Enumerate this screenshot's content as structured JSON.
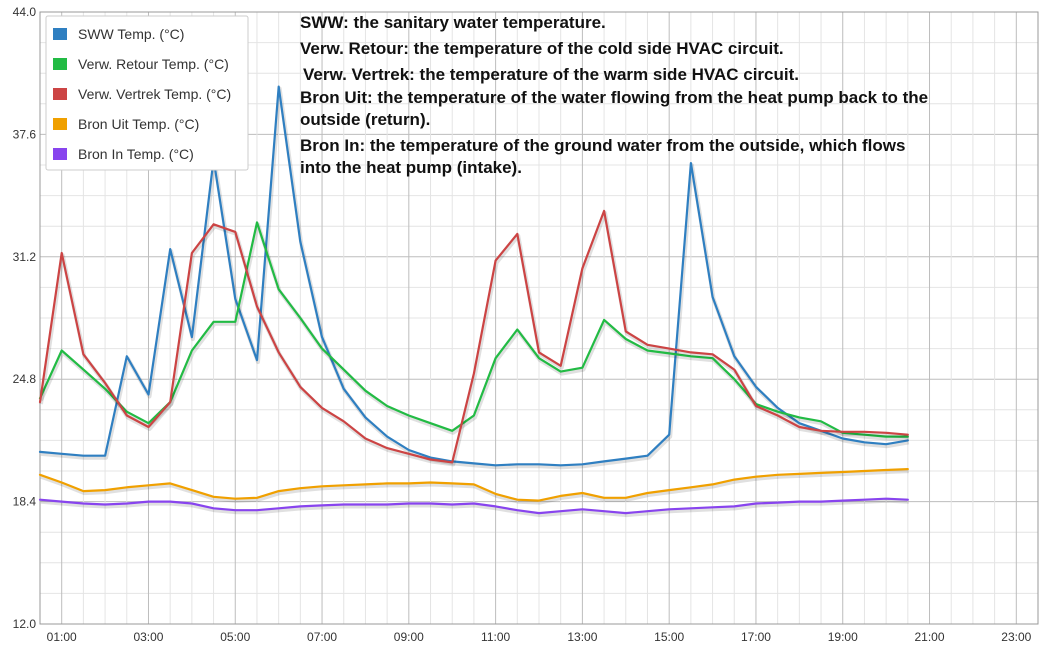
{
  "chart_data": {
    "type": "line",
    "title": "",
    "xlabel": "",
    "ylabel": "",
    "ylim": [
      12.0,
      44.0
    ],
    "xlim": [
      0.5,
      23.5
    ],
    "y_ticks": [
      "12.0",
      "18.4",
      "24.8",
      "31.2",
      "37.6",
      "44.0"
    ],
    "x_ticks": [
      "01:00",
      "03:00",
      "05:00",
      "07:00",
      "09:00",
      "11:00",
      "13:00",
      "15:00",
      "17:00",
      "19:00",
      "21:00",
      "23:00"
    ],
    "grid": true,
    "legend_position": "top-left",
    "x": [
      0.5,
      1.0,
      1.5,
      2.0,
      2.5,
      3.0,
      3.5,
      4.0,
      4.5,
      5.0,
      5.5,
      6.0,
      6.5,
      7.0,
      7.5,
      8.0,
      8.5,
      9.0,
      9.5,
      10.0,
      10.5,
      11.0,
      11.5,
      12.0,
      12.5,
      13.0,
      13.5,
      14.0,
      14.5,
      15.0,
      15.5,
      16.0,
      16.5,
      17.0,
      17.5,
      18.0,
      18.5,
      19.0,
      19.5,
      20.0,
      20.5
    ],
    "series": [
      {
        "name": "SWW Temp. (°C)",
        "color": "#2f7fc1",
        "values": [
          21.0,
          20.9,
          20.8,
          20.8,
          26.0,
          24.0,
          31.6,
          27.0,
          36.3,
          29.0,
          25.8,
          40.1,
          32.0,
          27.0,
          24.3,
          22.8,
          21.8,
          21.1,
          20.7,
          20.5,
          20.4,
          20.3,
          20.35,
          20.35,
          20.3,
          20.35,
          20.5,
          20.65,
          20.8,
          21.9,
          36.1,
          29.1,
          26.0,
          24.4,
          23.3,
          22.5,
          22.1,
          21.7,
          21.5,
          21.4,
          21.6
        ]
      },
      {
        "name": "Verw. Retour Temp. (°C)",
        "color": "#22bb44",
        "values": [
          23.8,
          26.3,
          25.3,
          24.3,
          23.1,
          22.5,
          23.6,
          26.3,
          27.8,
          27.8,
          33.0,
          29.5,
          28.0,
          26.4,
          25.3,
          24.2,
          23.4,
          22.9,
          22.5,
          22.1,
          22.9,
          25.9,
          27.4,
          25.9,
          25.2,
          25.4,
          27.9,
          26.9,
          26.3,
          26.15,
          26.0,
          25.9,
          24.8,
          23.5,
          23.1,
          22.8,
          22.6,
          22.0,
          21.9,
          21.8,
          21.8
        ]
      },
      {
        "name": "Verw. Vertrek Temp. (°C)",
        "color": "#cc4444",
        "values": [
          23.6,
          31.4,
          26.1,
          24.6,
          22.9,
          22.3,
          23.6,
          31.4,
          32.9,
          32.5,
          28.6,
          26.2,
          24.4,
          23.3,
          22.6,
          21.7,
          21.2,
          20.9,
          20.6,
          20.45,
          25.1,
          31.0,
          32.4,
          26.2,
          25.5,
          30.6,
          33.6,
          27.3,
          26.6,
          26.4,
          26.2,
          26.1,
          25.3,
          23.4,
          22.9,
          22.3,
          22.1,
          22.05,
          22.05,
          22.0,
          21.9
        ]
      },
      {
        "name": "Bron Uit Temp. (°C)",
        "color": "#f0a000",
        "values": [
          19.8,
          19.4,
          18.95,
          19.0,
          19.15,
          19.25,
          19.35,
          19.0,
          18.65,
          18.55,
          18.6,
          18.95,
          19.1,
          19.2,
          19.25,
          19.3,
          19.35,
          19.35,
          19.4,
          19.35,
          19.3,
          18.8,
          18.5,
          18.45,
          18.7,
          18.85,
          18.6,
          18.6,
          18.85,
          19.0,
          19.15,
          19.3,
          19.55,
          19.7,
          19.8,
          19.85,
          19.9,
          19.95,
          20.0,
          20.05,
          20.1
        ]
      },
      {
        "name": "Bron In Temp. (°C)",
        "color": "#8844ee",
        "values": [
          18.5,
          18.4,
          18.3,
          18.25,
          18.3,
          18.4,
          18.4,
          18.3,
          18.05,
          17.95,
          17.95,
          18.05,
          18.15,
          18.2,
          18.25,
          18.25,
          18.25,
          18.3,
          18.3,
          18.25,
          18.3,
          18.15,
          17.95,
          17.8,
          17.9,
          18.0,
          17.9,
          17.8,
          17.9,
          18.0,
          18.05,
          18.1,
          18.15,
          18.3,
          18.35,
          18.4,
          18.4,
          18.45,
          18.5,
          18.55,
          18.5
        ]
      }
    ],
    "annotations": [
      "SWW: the sanitary water temperature.",
      "Verw. Retour: the temperature of the cold side HVAC circuit.",
      "Verw. Vertrek: the temperature of the warm side HVAC circuit.",
      "Bron Uit: the temperature of the water flowing from the heat pump back to the",
      "outside (return).",
      "Bron In: the temperature of the ground water from the outside, which flows",
      "into the heat pump (intake)."
    ]
  }
}
